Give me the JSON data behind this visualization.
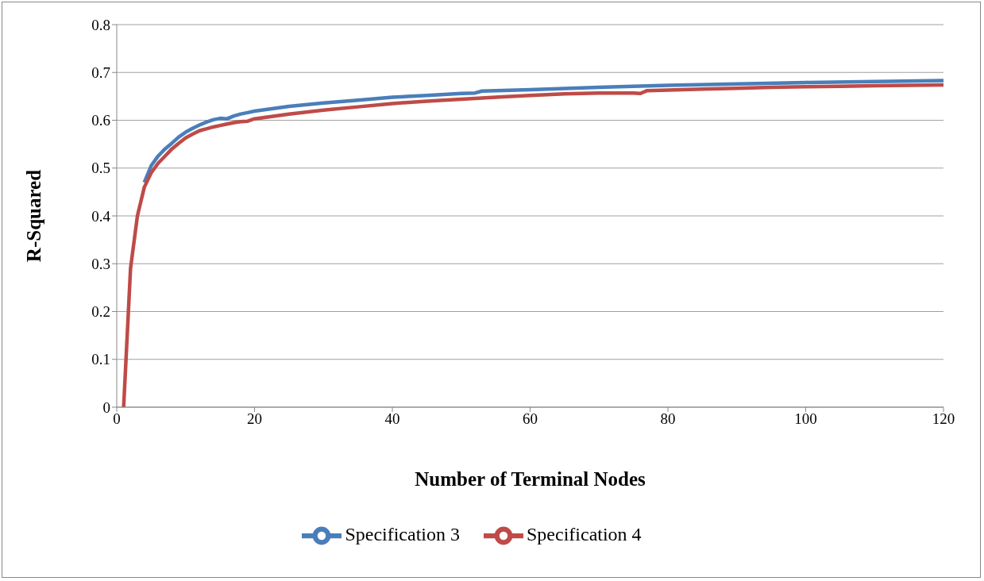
{
  "chart_data": {
    "type": "line",
    "xlabel": "Number of Terminal Nodes",
    "ylabel": "R-Squared",
    "xlim": [
      0,
      120
    ],
    "xticks": [
      0,
      20,
      40,
      60,
      80,
      100,
      120
    ],
    "ylim": [
      0,
      0.8
    ],
    "yticks": [
      0,
      0.1,
      0.2,
      0.3,
      0.4,
      0.5,
      0.6,
      0.7,
      0.8
    ],
    "grid": "y",
    "legend": "bottom",
    "series": [
      {
        "name": "Specification 3",
        "color": "#4a7ebb",
        "x": [
          4,
          5,
          6,
          7,
          8,
          9,
          10,
          11,
          12,
          13,
          14,
          15,
          16,
          17,
          18,
          19,
          20,
          25,
          30,
          35,
          40,
          45,
          50,
          52,
          53,
          60,
          70,
          80,
          90,
          100,
          110,
          120
        ],
        "values": [
          0.47,
          0.505,
          0.525,
          0.54,
          0.552,
          0.565,
          0.575,
          0.583,
          0.59,
          0.596,
          0.601,
          0.604,
          0.603,
          0.609,
          0.613,
          0.616,
          0.619,
          0.629,
          0.636,
          0.642,
          0.648,
          0.652,
          0.656,
          0.657,
          0.661,
          0.664,
          0.669,
          0.673,
          0.676,
          0.679,
          0.681,
          0.683
        ]
      },
      {
        "name": "Specification 4",
        "color": "#be4b48",
        "x": [
          1,
          2,
          3,
          4,
          5,
          6,
          7,
          8,
          9,
          10,
          11,
          12,
          13,
          14,
          15,
          16,
          17,
          18,
          19,
          20,
          25,
          30,
          35,
          40,
          45,
          50,
          55,
          60,
          65,
          70,
          75,
          76,
          77,
          80,
          85,
          90,
          95,
          100,
          105,
          110,
          115,
          120
        ],
        "values": [
          0.0,
          0.29,
          0.4,
          0.46,
          0.49,
          0.51,
          0.525,
          0.54,
          0.552,
          0.563,
          0.571,
          0.578,
          0.582,
          0.586,
          0.589,
          0.592,
          0.595,
          0.597,
          0.598,
          0.603,
          0.613,
          0.621,
          0.628,
          0.635,
          0.64,
          0.644,
          0.648,
          0.652,
          0.655,
          0.657,
          0.657,
          0.656,
          0.662,
          0.663,
          0.665,
          0.667,
          0.669,
          0.67,
          0.671,
          0.672,
          0.673,
          0.674
        ]
      }
    ]
  }
}
